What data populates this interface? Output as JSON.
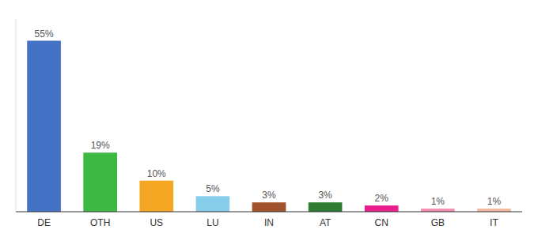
{
  "chart_data": {
    "type": "bar",
    "categories": [
      "DE",
      "OTH",
      "US",
      "LU",
      "IN",
      "AT",
      "CN",
      "GB",
      "IT"
    ],
    "values": [
      55,
      19,
      10,
      5,
      3,
      3,
      2,
      1,
      1
    ],
    "value_labels": [
      "55%",
      "19%",
      "10%",
      "5%",
      "3%",
      "3%",
      "2%",
      "1%",
      "1%"
    ],
    "colors": [
      "#4472c4",
      "#3cb843",
      "#f5a623",
      "#87ceeb",
      "#a0522d",
      "#2e7d32",
      "#e91e8c",
      "#f48fb1",
      "#f4b8a0"
    ],
    "ylim": [
      0,
      62
    ],
    "data_labels": true,
    "tick_labels": "x"
  }
}
